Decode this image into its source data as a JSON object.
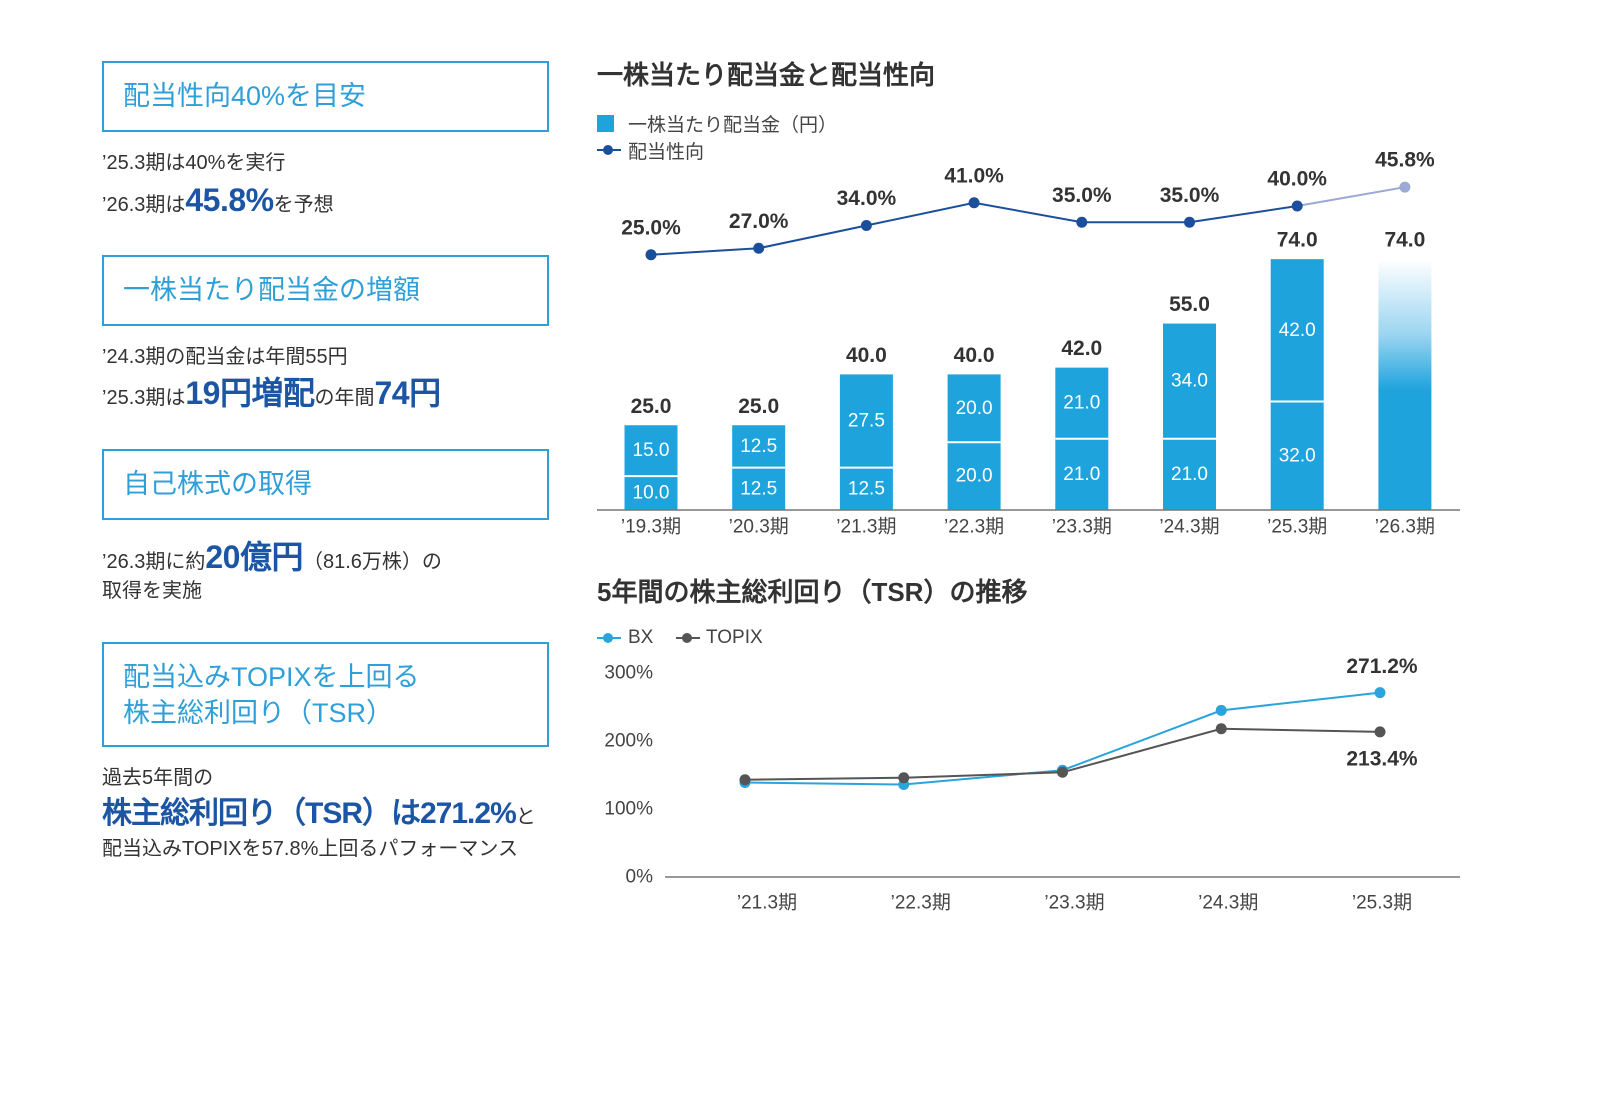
{
  "theme": {
    "accent": "#2f9fd8",
    "emphasis": "#1b55a3",
    "text": "#333333"
  },
  "highlights": [
    {
      "heading": [
        "配当性向40%を目安"
      ],
      "lines": [
        [
          "’25.3期は40%を実行"
        ],
        [
          "’26.3期は",
          "45.8%",
          "を予想"
        ]
      ]
    },
    {
      "heading": [
        "一株当たり配当金の増額"
      ],
      "lines": [
        [
          "’24.3期の配当金は年間55円"
        ],
        [
          "’25.3期は",
          "19円増配",
          "の年間",
          "74円"
        ]
      ]
    },
    {
      "heading": [
        "自己株式の取得"
      ],
      "lines": [
        [
          "’26.3期に約",
          "20億円",
          "（81.6万株）の"
        ],
        [
          "取得を実施"
        ]
      ]
    },
    {
      "heading": [
        "配当込みTOPIXを上回る",
        "株主総利回り（TSR）"
      ],
      "lines": [
        [
          "過去5年間の"
        ],
        [
          "株主総利回り（TSR）は271.2%",
          "と"
        ],
        [
          "配当込みTOPIXを57.8%上回るパフォーマンス"
        ]
      ]
    }
  ],
  "chart_data": [
    {
      "type": "bar",
      "title": "一株当たり配当金と配当性向",
      "categories": [
        "’19.3期",
        "’20.3期",
        "’21.3期",
        "’22.3期",
        "’23.3期",
        "’24.3期",
        "’25.3期",
        "’26.3期"
      ],
      "series": [
        {
          "name": "一株当たり配当金（円）",
          "type": "stacked-bar",
          "color": "#1fa3dd",
          "totals": [
            25.0,
            25.0,
            40.0,
            40.0,
            42.0,
            55.0,
            74.0,
            74.0
          ],
          "stacks": [
            [
              10.0,
              15.0
            ],
            [
              12.5,
              12.5
            ],
            [
              12.5,
              27.5
            ],
            [
              20.0,
              20.0
            ],
            [
              21.0,
              21.0
            ],
            [
              21.0,
              34.0
            ],
            [
              32.0,
              42.0
            ],
            null
          ]
        },
        {
          "name": "配当性向",
          "type": "line",
          "color": "#1b4f9c",
          "forecast_color": "#9ba9d4",
          "unit": "%",
          "values": [
            25.0,
            27.0,
            34.0,
            41.0,
            35.0,
            35.0,
            40.0,
            45.8
          ]
        }
      ],
      "forecast_index": 7,
      "legend": "top-left",
      "grid": false
    },
    {
      "type": "line",
      "title": "5年間の株主総利回り（TSR）の推移",
      "categories": [
        "’21.3期",
        "’22.3期",
        "’23.3期",
        "’24.3期",
        "’25.3期"
      ],
      "series": [
        {
          "name": "BX",
          "color": "#2ba4dc",
          "values": [
            139,
            136,
            157,
            245,
            271.2
          ]
        },
        {
          "name": "TOPIX",
          "color": "#555555",
          "values": [
            143,
            146,
            154,
            218,
            213.4
          ]
        }
      ],
      "ylim": [
        0,
        300
      ],
      "yticks": [
        0,
        100,
        200,
        300
      ],
      "yunit": "%",
      "legend": "top-left",
      "grid": false
    }
  ]
}
